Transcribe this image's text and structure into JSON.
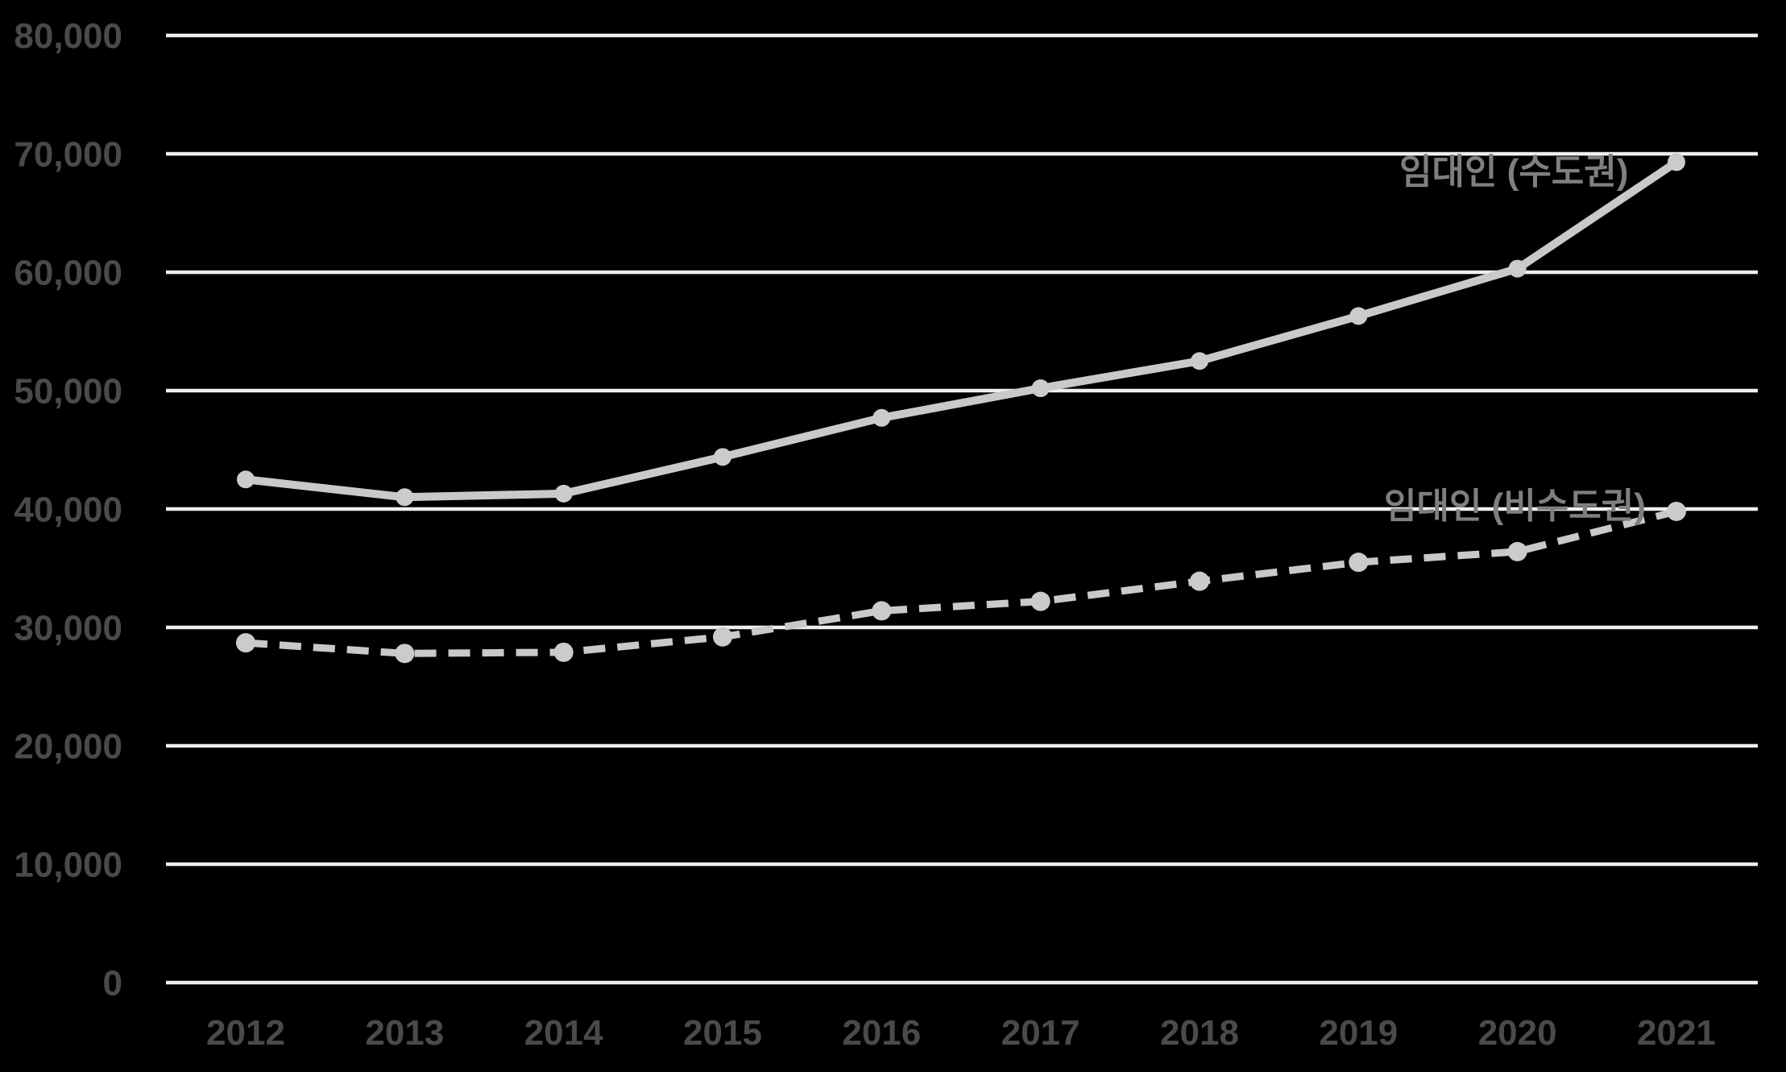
{
  "chart_data": {
    "type": "line",
    "title": "",
    "xlabel": "",
    "ylabel": "",
    "categories": [
      "2012",
      "2013",
      "2014",
      "2015",
      "2016",
      "2017",
      "2018",
      "2019",
      "2020",
      "2021"
    ],
    "series": [
      {
        "name": "임대인 (수도권)",
        "line_style": "solid",
        "marker": "circle",
        "values": [
          42500,
          41000,
          41300,
          44400,
          47700,
          50200,
          52500,
          56300,
          60300,
          69300
        ]
      },
      {
        "name": "임대인 (비수도권)",
        "line_style": "dashed",
        "marker": "circle",
        "values": [
          28700,
          27800,
          27900,
          29200,
          31400,
          32200,
          33900,
          35500,
          36400,
          39800
        ]
      }
    ],
    "ylim": [
      0,
      80000
    ],
    "y_tick_step": 10000,
    "y_tick_labels": [
      "0",
      "10,000",
      "20,000",
      "30,000",
      "40,000",
      "50,000",
      "60,000",
      "70,000",
      "80,000"
    ],
    "grid": true,
    "legend_position": "inline-labels-near-lines"
  },
  "colors": {
    "background": "#000000",
    "gridline": "#efefef",
    "series_line": "#c9c9c9",
    "series_marker": "#cbcbcb",
    "axis_text": "#4a4a4a",
    "series_label_text": "#7f7f7f"
  }
}
